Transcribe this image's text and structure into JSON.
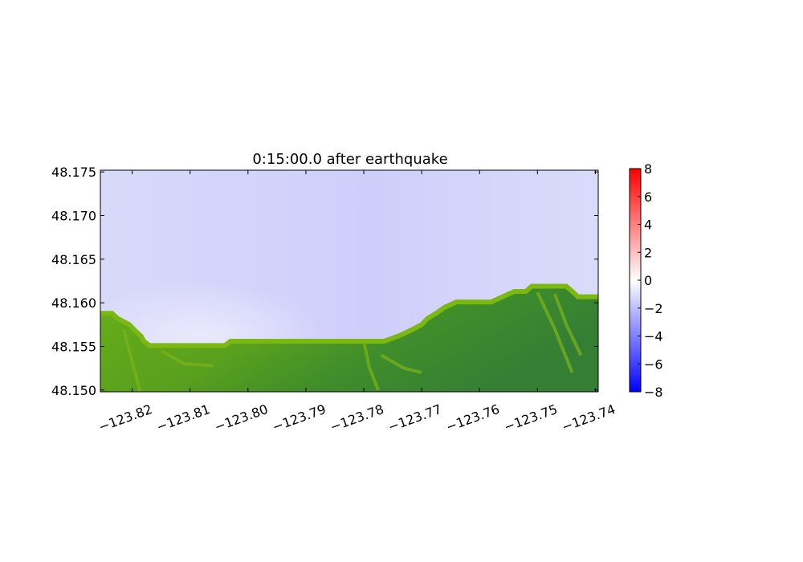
{
  "chart_data": {
    "type": "heatmap",
    "title": "0:15:00.0 after earthquake",
    "xlabel": "",
    "ylabel": "",
    "xlim": [
      -123.8255,
      -123.7395
    ],
    "ylim": [
      48.1498,
      48.1752
    ],
    "x_ticks": [
      -123.82,
      -123.81,
      -123.8,
      -123.79,
      -123.78,
      -123.77,
      -123.76,
      -123.75,
      -123.74
    ],
    "x_tick_labels": [
      "−123.82",
      "−123.81",
      "−123.80",
      "−123.79",
      "−123.78",
      "−123.77",
      "−123.76",
      "−123.75",
      "−123.74"
    ],
    "y_ticks": [
      48.15,
      48.155,
      48.16,
      48.165,
      48.17,
      48.175
    ],
    "y_tick_labels": [
      "48.150",
      "48.155",
      "48.160",
      "48.165",
      "48.170",
      "48.175"
    ],
    "colorbar": {
      "range": [
        -8,
        8
      ],
      "ticks": [
        8,
        6,
        4,
        2,
        0,
        -2,
        -4,
        -6,
        -8
      ],
      "tick_labels": [
        "8",
        "6",
        "4",
        "2",
        "0",
        "−2",
        "−4",
        "−6",
        "−8"
      ],
      "colormap": [
        "#0000ff",
        "#ffffff",
        "#ff0000"
      ]
    },
    "water_surface_value_range": [
      -2.5,
      -1.5
    ],
    "shoreline_lat": [
      [
        -123.8255,
        48.1588
      ],
      [
        -123.8235,
        48.1588
      ],
      [
        -123.8225,
        48.1582
      ],
      [
        -123.8205,
        48.1575
      ],
      [
        -123.8195,
        48.1568
      ],
      [
        -123.8185,
        48.1562
      ],
      [
        -123.818,
        48.1556
      ],
      [
        -123.817,
        48.1551
      ],
      [
        -123.81,
        48.1551
      ],
      [
        -123.804,
        48.1551
      ],
      [
        -123.803,
        48.1556
      ],
      [
        -123.8,
        48.1556
      ],
      [
        -123.7975,
        48.1556
      ],
      [
        -123.794,
        48.1556
      ],
      [
        -123.789,
        48.1556
      ],
      [
        -123.782,
        48.1556
      ],
      [
        -123.779,
        48.1556
      ],
      [
        -123.7765,
        48.1556
      ],
      [
        -123.774,
        48.1562
      ],
      [
        -123.772,
        48.1568
      ],
      [
        -123.77,
        48.1575
      ],
      [
        -123.769,
        48.1582
      ],
      [
        -123.7675,
        48.1588
      ],
      [
        -123.766,
        48.1595
      ],
      [
        -123.764,
        48.1601
      ],
      [
        -123.758,
        48.1601
      ],
      [
        -123.756,
        48.1607
      ],
      [
        -123.754,
        48.1613
      ],
      [
        -123.752,
        48.1613
      ],
      [
        -123.751,
        48.1619
      ],
      [
        -123.745,
        48.1619
      ],
      [
        -123.744,
        48.1613
      ],
      [
        -123.743,
        48.1607
      ],
      [
        -123.7395,
        48.1607
      ]
    ],
    "land_colors": [
      "#7cb812",
      "#5fa51e",
      "#3e8c2c",
      "#357f34"
    ]
  }
}
